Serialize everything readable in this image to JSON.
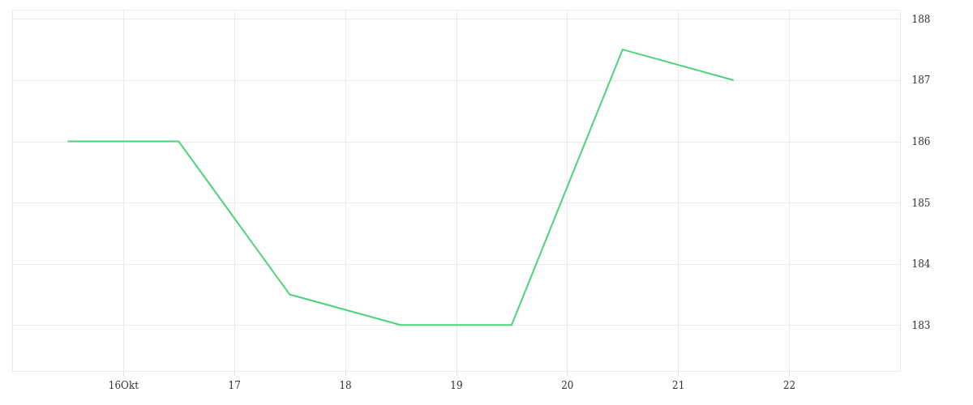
{
  "chart_data": {
    "type": "line",
    "x": [
      15.5,
      16.5,
      17.5,
      18.5,
      19.5,
      20.5,
      21.5
    ],
    "series": [
      {
        "color": "#4cd37b",
        "values": [
          186,
          186,
          183.5,
          183,
          183,
          187.5,
          187
        ]
      }
    ],
    "xlim": [
      15,
      23
    ],
    "xticks": [
      {
        "value": 16,
        "label": "16Okt"
      },
      17,
      18,
      19,
      20,
      21,
      22
    ],
    "ylim": [
      182.25,
      188.15
    ],
    "yticks": [
      183,
      184,
      185,
      186,
      187,
      188
    ],
    "grid": true,
    "marker": "none",
    "line_style": "solid"
  }
}
